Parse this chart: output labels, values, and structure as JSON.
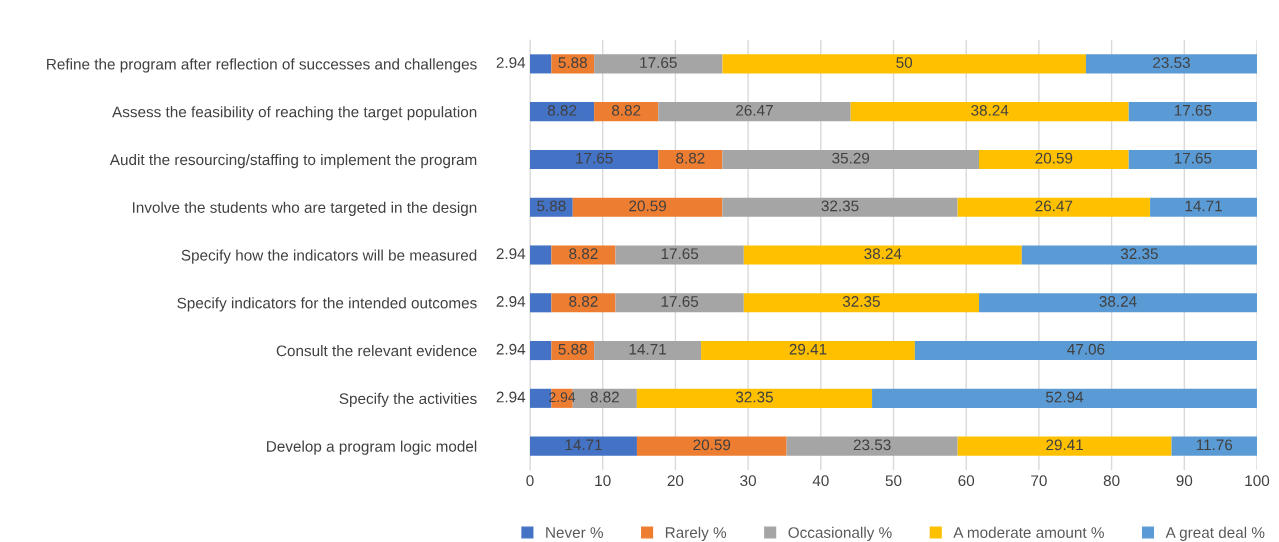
{
  "chart_data": {
    "type": "bar",
    "orientation": "horizontal",
    "stacked": true,
    "data_labels": true,
    "grid": "x",
    "legend": "bottom",
    "categories": [
      "Refine the program after reflection of successes and challenges",
      "Assess the feasibility of reaching the target population",
      "Audit the resourcing/staffing to implement the program",
      "Involve the students who are targeted in the design",
      "Specify how the indicators will be measured",
      "Specify indicators for the intended outcomes",
      "Consult the relevant evidence",
      "Specify the activities",
      "Develop a program logic model"
    ],
    "series": [
      {
        "name": "Never %",
        "color": "#4472c4",
        "values": [
          2.94,
          8.82,
          17.65,
          5.88,
          2.94,
          2.94,
          2.94,
          2.94,
          14.71
        ]
      },
      {
        "name": "Rarely %",
        "color": "#ed7d31",
        "values": [
          5.88,
          8.82,
          8.82,
          20.59,
          8.82,
          8.82,
          5.88,
          2.94,
          20.59
        ]
      },
      {
        "name": "Occasionally %",
        "color": "#a5a5a5",
        "values": [
          17.65,
          26.47,
          35.29,
          32.35,
          17.65,
          17.65,
          14.71,
          8.82,
          23.53
        ]
      },
      {
        "name": "A moderate amount %",
        "color": "#ffc000",
        "values": [
          50,
          38.24,
          20.59,
          26.47,
          38.24,
          32.35,
          29.41,
          32.35,
          29.41
        ]
      },
      {
        "name": "A great deal %",
        "color": "#5b9bd5",
        "values": [
          23.53,
          17.65,
          17.65,
          14.71,
          32.35,
          38.24,
          47.06,
          52.94,
          11.76
        ]
      }
    ],
    "xlim": [
      0,
      100
    ],
    "xticks": [
      0,
      10,
      20,
      30,
      40,
      50,
      60,
      70,
      80,
      90,
      100
    ]
  }
}
